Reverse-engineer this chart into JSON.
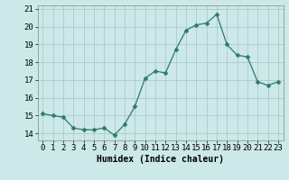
{
  "xlabel": "Humidex (Indice chaleur)",
  "x": [
    0,
    1,
    2,
    3,
    4,
    5,
    6,
    7,
    8,
    9,
    10,
    11,
    12,
    13,
    14,
    15,
    16,
    17,
    18,
    19,
    20,
    21,
    22,
    23
  ],
  "y": [
    15.1,
    15.0,
    14.9,
    14.3,
    14.2,
    14.2,
    14.3,
    13.9,
    14.5,
    15.5,
    17.1,
    17.5,
    17.4,
    18.7,
    19.8,
    20.1,
    20.2,
    20.7,
    19.0,
    18.4,
    18.3,
    16.9,
    16.7,
    16.9
  ],
  "line_color": "#2d7a6a",
  "marker": "D",
  "marker_size": 2.5,
  "bg_color": "#cce8e8",
  "grid_color": "#aacccc",
  "ylim": [
    13.6,
    21.2
  ],
  "yticks": [
    14,
    15,
    16,
    17,
    18,
    19,
    20,
    21
  ],
  "xticks": [
    0,
    1,
    2,
    3,
    4,
    5,
    6,
    7,
    8,
    9,
    10,
    11,
    12,
    13,
    14,
    15,
    16,
    17,
    18,
    19,
    20,
    21,
    22,
    23
  ],
  "xlabel_fontsize": 7,
  "tick_fontsize": 6.5
}
